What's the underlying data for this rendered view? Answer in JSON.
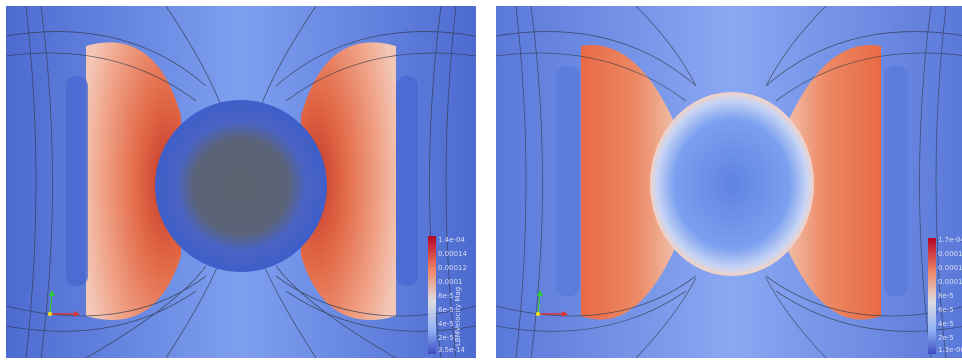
{
  "panels": [
    {
      "id": "left",
      "colorbar": {
        "title": "LBMVelocity Mag",
        "ticks": [
          "1.4e-04",
          "0.00014",
          "0.00012",
          "0.0001",
          "8e-5",
          "6e-5",
          "4e-5",
          "2e-5",
          "3.5e-14"
        ]
      },
      "colors": {
        "background": "#5a79d6",
        "warm": "#e2623f",
        "core": "#4b66c9",
        "center": "#5c6270"
      }
    },
    {
      "id": "right",
      "colorbar": {
        "title": "",
        "ticks": [
          "1.7e-04",
          "0.00016",
          "0.00014",
          "0.0001",
          "8e-5",
          "6e-5",
          "4e-5",
          "2e-5",
          "1.3e-06"
        ]
      },
      "colors": {
        "background": "#5a79d6",
        "warm": "#e8774f",
        "core": "#6f93e8",
        "center": "#86a9f0"
      }
    }
  ],
  "axes_widget": {
    "x_label": "X",
    "y_label": "Y",
    "z_label": "Z"
  }
}
